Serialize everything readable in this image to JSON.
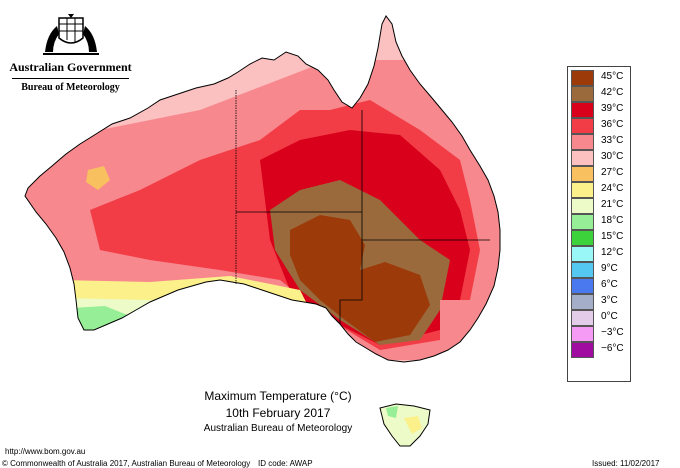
{
  "header": {
    "government": "Australian Government",
    "bureau": "Bureau of Meteorology"
  },
  "legend": {
    "items": [
      {
        "label": "45°C",
        "color": "#9c3a0a"
      },
      {
        "label": "42°C",
        "color": "#9a6a3c"
      },
      {
        "label": "39°C",
        "color": "#d8001a"
      },
      {
        "label": "36°C",
        "color": "#f23c46"
      },
      {
        "label": "33°C",
        "color": "#f7888e"
      },
      {
        "label": "30°C",
        "color": "#fbc0c0"
      },
      {
        "label": "27°C",
        "color": "#f9c060"
      },
      {
        "label": "24°C",
        "color": "#fbf08a"
      },
      {
        "label": "21°C",
        "color": "#edfbc8"
      },
      {
        "label": "18°C",
        "color": "#96ee96"
      },
      {
        "label": "15°C",
        "color": "#3cd23c"
      },
      {
        "label": "12°C",
        "color": "#9af7f7"
      },
      {
        "label": "9°C",
        "color": "#55c8f2"
      },
      {
        "label": "6°C",
        "color": "#4a78ee"
      },
      {
        "label": "3°C",
        "color": "#a4aec8"
      },
      {
        "label": "0°C",
        "color": "#e2cce8"
      },
      {
        "label": "−3°C",
        "color": "#f59af5"
      },
      {
        "label": "−6°C",
        "color": "#a00ca0"
      }
    ]
  },
  "caption": {
    "title": "Maximum Temperature (°C)",
    "date": "10th February 2017",
    "source": "Australian Bureau of Meteorology"
  },
  "footer": {
    "url": "http://www.bom.gov.au",
    "copyright": "© Commonwealth of Australia 2017, Australian Bureau of Meteorology",
    "id_code": "ID code: AWAP",
    "issued": "Issued: 11/02/2017"
  }
}
